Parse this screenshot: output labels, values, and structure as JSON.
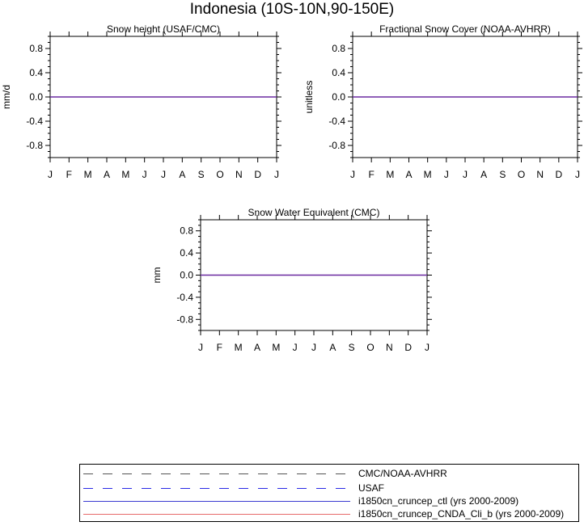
{
  "title": "Indonesia (10S-10N,90-150E)",
  "colors": {
    "cmc_noaa": "#555555",
    "usaf": "#2a2ae6",
    "ctl": "#3a3ad0",
    "cnda": "#e66a6a",
    "zero_line": "#6a2aa0"
  },
  "chart_data": [
    {
      "type": "line",
      "title": "Snow height (USAF/CMC)",
      "ylabel": "mm/d",
      "xlabel": "",
      "categories": [
        "J",
        "F",
        "M",
        "A",
        "M",
        "J",
        "J",
        "A",
        "S",
        "O",
        "N",
        "D",
        "J"
      ],
      "ylim": [
        -1,
        1
      ],
      "yticks": [
        0.8,
        0.4,
        0.0,
        -0.4,
        -0.8
      ],
      "ytick_labels": [
        "0.8",
        "0.4",
        "0.0",
        "-0.4",
        "-0.8"
      ],
      "series": [
        {
          "name": "USAF",
          "values": [
            0,
            0,
            0,
            0,
            0,
            0,
            0,
            0,
            0,
            0,
            0,
            0,
            0
          ],
          "style": "dashed",
          "color": "#2a2ae6"
        },
        {
          "name": "i1850cn_cruncep_ctl (yrs 2000-2009)",
          "values": [
            0,
            0,
            0,
            0,
            0,
            0,
            0,
            0,
            0,
            0,
            0,
            0,
            0
          ],
          "style": "solid",
          "color": "#3a3ad0"
        },
        {
          "name": "i1850cn_cruncep_CNDA_Cli_b (yrs 2000-2009)",
          "values": [
            0,
            0,
            0,
            0,
            0,
            0,
            0,
            0,
            0,
            0,
            0,
            0,
            0
          ],
          "style": "solid",
          "color": "#e66a6a"
        }
      ]
    },
    {
      "type": "line",
      "title": "Fractional Snow Cover (NOAA-AVHRR)",
      "ylabel": "unitless",
      "xlabel": "",
      "categories": [
        "J",
        "F",
        "M",
        "A",
        "M",
        "J",
        "J",
        "A",
        "S",
        "O",
        "N",
        "D",
        "J"
      ],
      "ylim": [
        -1,
        1
      ],
      "yticks": [
        0.8,
        0.4,
        0.0,
        -0.4,
        -0.8
      ],
      "ytick_labels": [
        "0.8",
        "0.4",
        "0.0",
        "-0.4",
        "-0.8"
      ],
      "series": [
        {
          "name": "CMC/NOAA-AVHRR",
          "values": [
            0,
            0,
            0,
            0,
            0,
            0,
            0,
            0,
            0,
            0,
            0,
            0,
            0
          ],
          "style": "dashed",
          "color": "#555555"
        },
        {
          "name": "i1850cn_cruncep_ctl (yrs 2000-2009)",
          "values": [
            0,
            0,
            0,
            0,
            0,
            0,
            0,
            0,
            0,
            0,
            0,
            0,
            0
          ],
          "style": "solid",
          "color": "#3a3ad0"
        },
        {
          "name": "i1850cn_cruncep_CNDA_Cli_b (yrs 2000-2009)",
          "values": [
            0,
            0,
            0,
            0,
            0,
            0,
            0,
            0,
            0,
            0,
            0,
            0,
            0
          ],
          "style": "solid",
          "color": "#e66a6a"
        }
      ]
    },
    {
      "type": "line",
      "title": "Snow Water Equivalent (CMC)",
      "ylabel": "mm",
      "xlabel": "",
      "categories": [
        "J",
        "F",
        "M",
        "A",
        "M",
        "J",
        "J",
        "A",
        "S",
        "O",
        "N",
        "D",
        "J"
      ],
      "ylim": [
        -1,
        1
      ],
      "yticks": [
        0.8,
        0.4,
        0.0,
        -0.4,
        -0.8
      ],
      "ytick_labels": [
        "0.8",
        "0.4",
        "0.0",
        "-0.4",
        "-0.8"
      ],
      "series": [
        {
          "name": "CMC/NOAA-AVHRR",
          "values": [
            0,
            0,
            0,
            0,
            0,
            0,
            0,
            0,
            0,
            0,
            0,
            0,
            0
          ],
          "style": "dashed",
          "color": "#555555"
        },
        {
          "name": "i1850cn_cruncep_ctl (yrs 2000-2009)",
          "values": [
            0,
            0,
            0,
            0,
            0,
            0,
            0,
            0,
            0,
            0,
            0,
            0,
            0
          ],
          "style": "solid",
          "color": "#3a3ad0"
        },
        {
          "name": "i1850cn_cruncep_CNDA_Cli_b (yrs 2000-2009)",
          "values": [
            0,
            0,
            0,
            0,
            0,
            0,
            0,
            0,
            0,
            0,
            0,
            0,
            0
          ],
          "style": "solid",
          "color": "#e66a6a"
        }
      ]
    }
  ],
  "legend": {
    "placement": "bottom",
    "items": [
      {
        "label": "CMC/NOAA-AVHRR",
        "style": "dashed",
        "color": "#555555"
      },
      {
        "label": "USAF",
        "style": "dashed",
        "color": "#2a2ae6"
      },
      {
        "label": "i1850cn_cruncep_ctl (yrs 2000-2009)",
        "style": "solid",
        "color": "#3a3ad0"
      },
      {
        "label": "i1850cn_cruncep_CNDA_Cli_b (yrs 2000-2009)",
        "style": "solid",
        "color": "#e66a6a"
      }
    ]
  }
}
